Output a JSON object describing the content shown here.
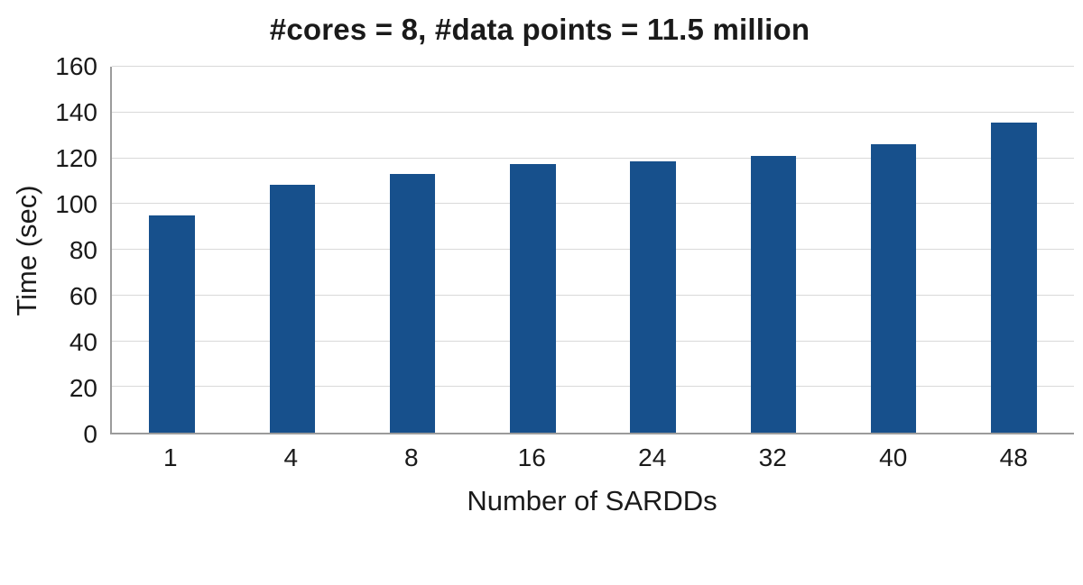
{
  "chart_data": {
    "type": "bar",
    "title": "#cores = 8, #data points = 11.5 million",
    "xlabel": "Number of SARDDs",
    "ylabel": "Time (sec)",
    "categories": [
      "1",
      "4",
      "8",
      "16",
      "24",
      "32",
      "40",
      "48"
    ],
    "values": [
      95,
      108.5,
      113,
      117.5,
      118.5,
      121,
      126,
      135.5
    ],
    "ylim": [
      0,
      160
    ],
    "ytick_step": 20,
    "yticks": [
      0,
      20,
      40,
      60,
      80,
      100,
      120,
      140,
      160
    ],
    "grid": true,
    "legend": "none",
    "bar_color": "#17508C",
    "gridline_color": "#d9d9d9",
    "axis_color": "#9b9b9b"
  }
}
